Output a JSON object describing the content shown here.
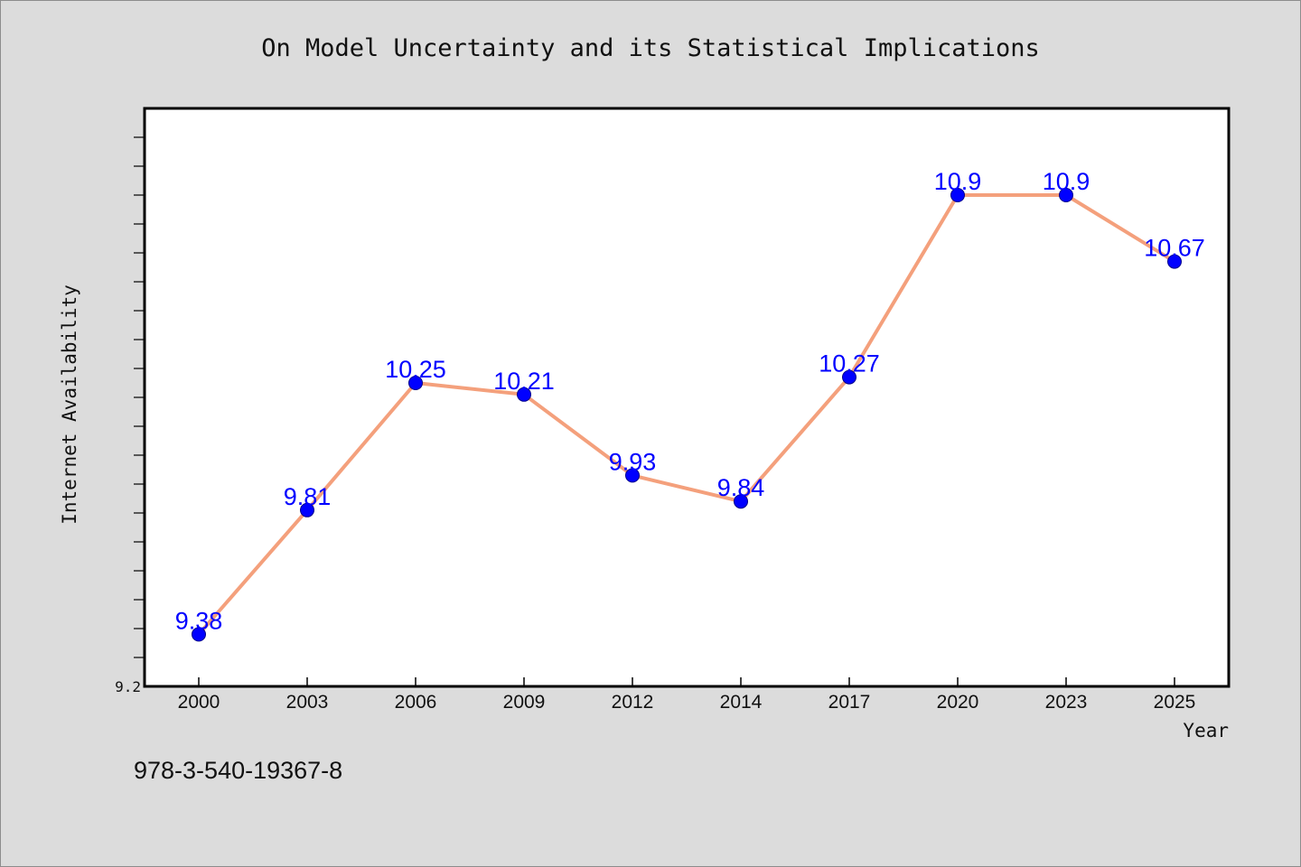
{
  "chart_data": {
    "type": "line",
    "title": "On Model Uncertainty and its Statistical Implications",
    "xlabel": "Year",
    "ylabel": "Internet Availability",
    "categories": [
      "2000",
      "2003",
      "2006",
      "2009",
      "2012",
      "2014",
      "2017",
      "2020",
      "2023",
      "2025"
    ],
    "series": [
      {
        "values": [
          9.38,
          9.81,
          10.25,
          10.21,
          9.93,
          9.84,
          10.27,
          10.9,
          10.9,
          10.67
        ],
        "labels": [
          "9.38",
          "9.81",
          "10.25",
          "10.21",
          "9.93",
          "9.84",
          "10.27",
          "10.9",
          "10.9",
          "10.67"
        ],
        "line_color": "#f4a07c",
        "marker_color": "#0000ff"
      }
    ],
    "ylim": [
      9.2,
      11.2
    ],
    "y_tick_labels": [
      "9.2"
    ],
    "grid": false,
    "legend": "none",
    "background": "#ffffff"
  },
  "footnote": "978-3-540-19367-8"
}
